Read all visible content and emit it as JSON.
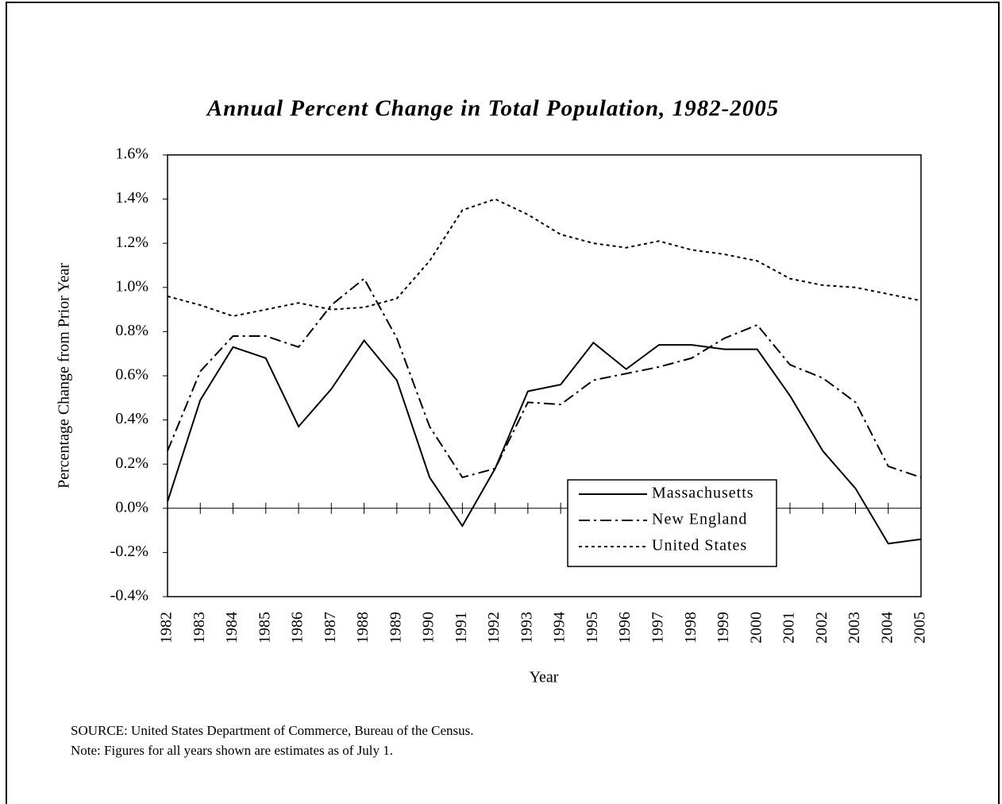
{
  "chart_data": {
    "type": "line",
    "title": "Annual Percent Change in Total Population, 1982-2005",
    "y_label": "Percentage Change from Prior Year",
    "x_label": "Year",
    "source": "SOURCE:  United States Department of Commerce, Bureau of the Census.",
    "note": "Note:  Figures for all years shown are estimates as of July 1.",
    "categories": [
      "1982",
      "1983",
      "1984",
      "1985",
      "1986",
      "1987",
      "1988",
      "1989",
      "1990",
      "1991",
      "1992",
      "1993",
      "1994",
      "1995",
      "1996",
      "1997",
      "1998",
      "1999",
      "2000",
      "2001",
      "2002",
      "2003",
      "2004",
      "2005"
    ],
    "ylim": [
      -0.4,
      1.6
    ],
    "yticks": [
      {
        "value": -0.4,
        "label": "-0.4%"
      },
      {
        "value": -0.2,
        "label": "-0.2%"
      },
      {
        "value": 0,
        "label": "0.0%"
      },
      {
        "value": 0.2,
        "label": "0.2%"
      },
      {
        "value": 0.4,
        "label": "0.4%"
      },
      {
        "value": 0.6,
        "label": "0.6%"
      },
      {
        "value": 0.8,
        "label": "0.8%"
      },
      {
        "value": 1.0,
        "label": "1.0%"
      },
      {
        "value": 1.2,
        "label": "1.2%"
      },
      {
        "value": 1.4,
        "label": "1.4%"
      },
      {
        "value": 1.6,
        "label": "1.6%"
      }
    ],
    "grid": false,
    "legend": "lower-right",
    "series": [
      {
        "name": "Massachusetts",
        "color": "#000000",
        "dash": "solid",
        "values": [
          0.03,
          0.49,
          0.73,
          0.68,
          0.37,
          0.54,
          0.76,
          0.58,
          0.14,
          -0.08,
          0.18,
          0.53,
          0.56,
          0.75,
          0.63,
          0.74,
          0.74,
          0.72,
          0.72,
          0.51,
          0.26,
          0.09,
          -0.16,
          -0.14
        ]
      },
      {
        "name": "New England",
        "color": "#000000",
        "dash": "dashdot",
        "values": [
          0.26,
          0.62,
          0.78,
          0.78,
          0.73,
          0.92,
          1.04,
          0.77,
          0.37,
          0.14,
          0.18,
          0.48,
          0.47,
          0.58,
          0.61,
          0.64,
          0.68,
          0.77,
          0.83,
          0.65,
          0.59,
          0.48,
          0.19,
          0.14
        ]
      },
      {
        "name": "United States",
        "color": "#000000",
        "dash": "dotted",
        "values": [
          0.96,
          0.92,
          0.87,
          0.9,
          0.93,
          0.9,
          0.91,
          0.95,
          1.12,
          1.35,
          1.4,
          1.33,
          1.24,
          1.2,
          1.18,
          1.21,
          1.17,
          1.15,
          1.12,
          1.04,
          1.01,
          1.0,
          0.97,
          0.94
        ]
      }
    ]
  }
}
